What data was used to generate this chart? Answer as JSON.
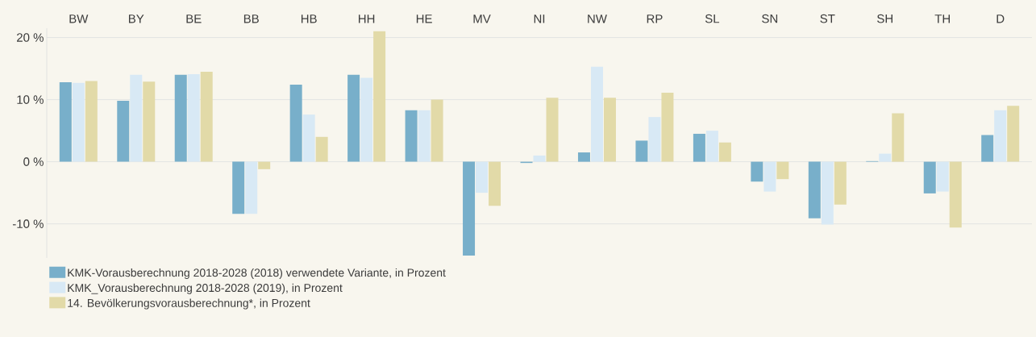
{
  "chart_data": {
    "type": "bar",
    "categories": [
      "BW",
      "BY",
      "BE",
      "BB",
      "HB",
      "HH",
      "HE",
      "MV",
      "NI",
      "NW",
      "RP",
      "SL",
      "SN",
      "ST",
      "SH",
      "TH",
      "D"
    ],
    "series": [
      {
        "name": "KMK-Vorausberechnung 2018-2028 (2018) verwendete Variante, in Prozent",
        "color": "#78afca",
        "values": [
          12.8,
          9.8,
          14.0,
          -8.4,
          12.4,
          14.0,
          8.3,
          -15.1,
          -0.2,
          1.5,
          3.4,
          4.5,
          -3.2,
          -9.1,
          0.1,
          -5.1,
          4.3
        ]
      },
      {
        "name": "KMK_Vorausberechnung 2018-2028 (2019), in Prozent",
        "color": "#d8e9f5",
        "values": [
          12.7,
          14.0,
          14.1,
          -8.4,
          7.6,
          13.5,
          8.3,
          -5.0,
          1.0,
          15.3,
          7.2,
          5.0,
          -4.8,
          -10.1,
          1.3,
          -4.8,
          8.3
        ]
      },
      {
        "name": "14. Bevölkerungsvorausberechnung*, in Prozent",
        "color": "#e2daa8",
        "values": [
          13.0,
          12.9,
          14.5,
          -1.2,
          4.0,
          21.0,
          10.0,
          -7.1,
          10.3,
          10.3,
          11.1,
          3.1,
          -2.8,
          -6.9,
          7.8,
          -10.6,
          9.0
        ]
      }
    ],
    "ylim": [
      -15.5,
      21.5
    ],
    "yticks": [
      {
        "value": -10,
        "label": "-10 %"
      },
      {
        "value": 0,
        "label": "0 %"
      },
      {
        "value": 10,
        "label": "10 %"
      },
      {
        "value": 20,
        "label": "20 %"
      }
    ],
    "grid": "y",
    "legend": "bottom left"
  }
}
